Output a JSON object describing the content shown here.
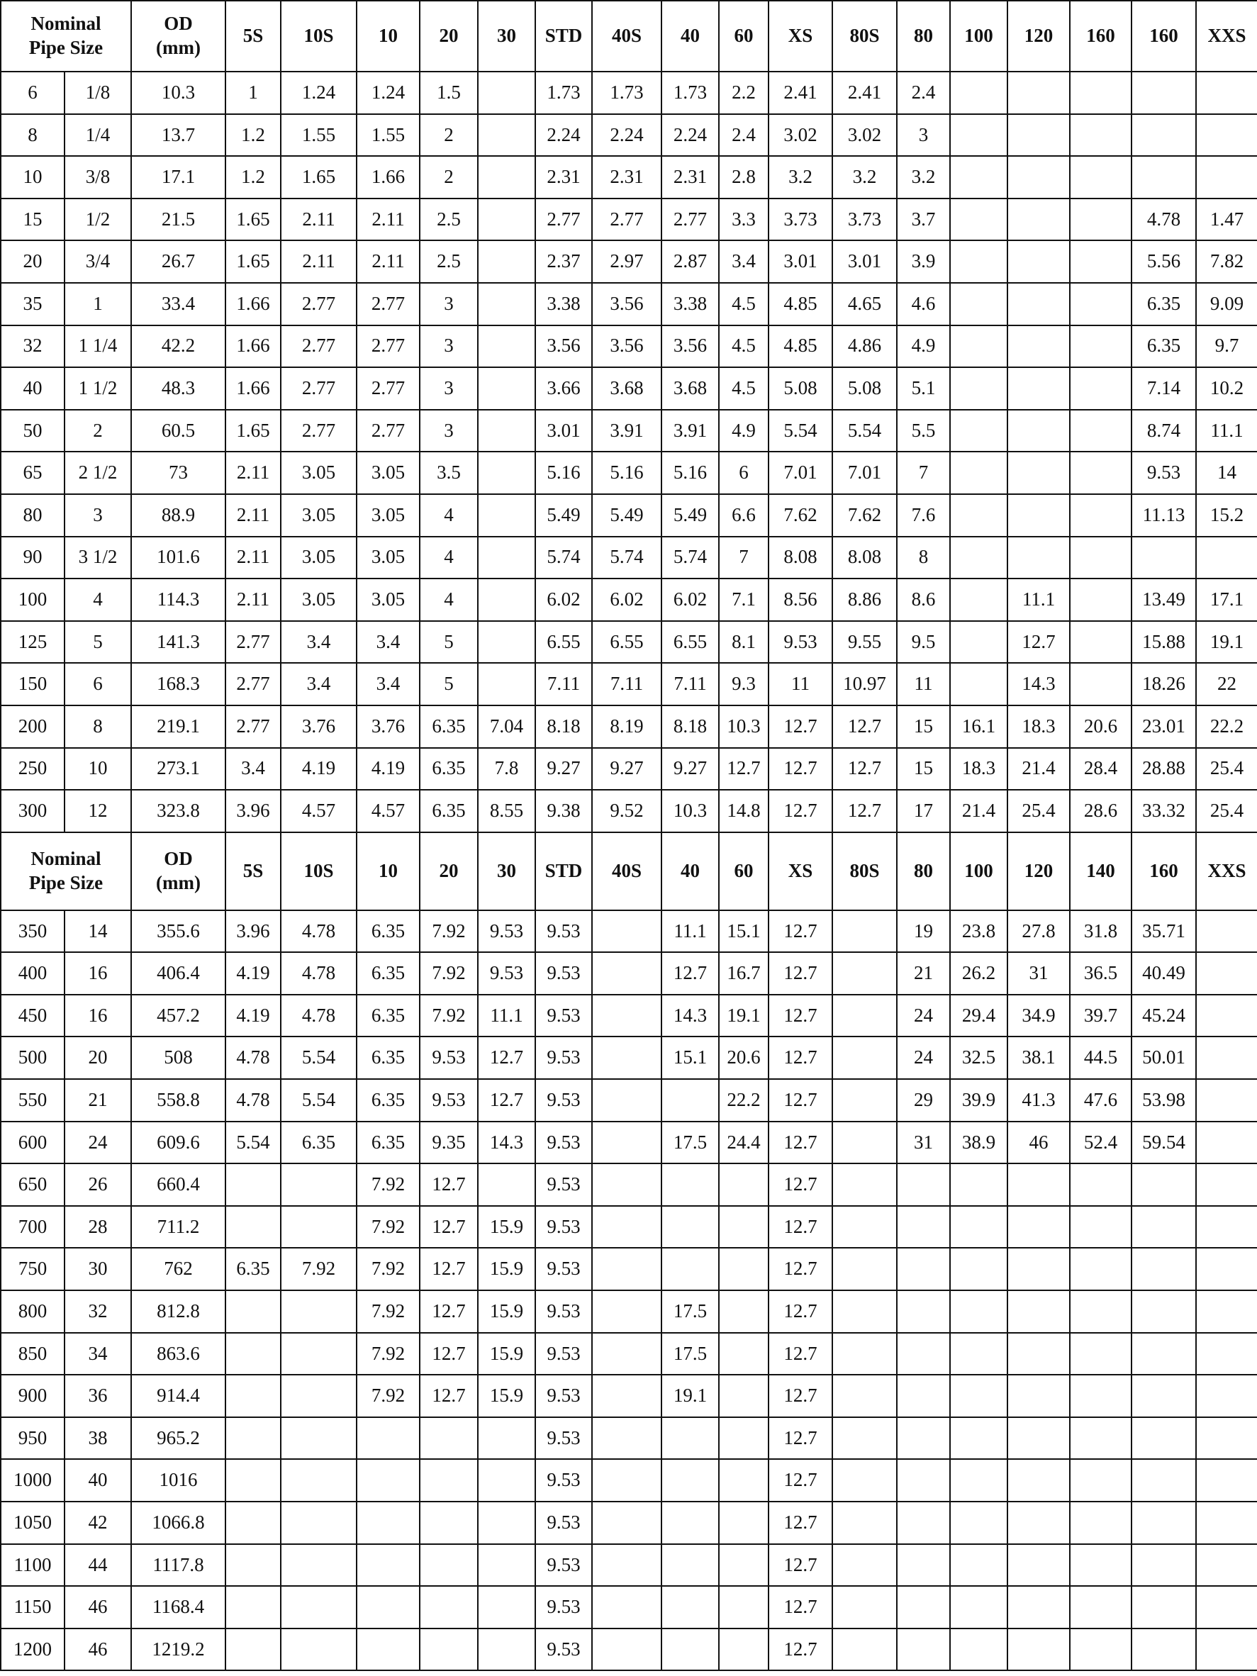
{
  "header": {
    "nominal": "Nominal\nPipe Size",
    "od": "OD\n(mm)",
    "schedules_top": [
      "5S",
      "10S",
      "10",
      "20",
      "30",
      "STD",
      "40S",
      "40",
      "60",
      "XS",
      "80S",
      "80",
      "100",
      "120",
      "160",
      "160",
      "XXS"
    ],
    "schedules_bottom": [
      "5S",
      "10S",
      "10",
      "20",
      "30",
      "STD",
      "40S",
      "40",
      "60",
      "XS",
      "80S",
      "80",
      "100",
      "120",
      "140",
      "160",
      "XXS"
    ]
  },
  "table1": {
    "rows": [
      [
        "6",
        "1/8",
        "10.3",
        "1",
        "1.24",
        "1.24",
        "1.5",
        "",
        "1.73",
        "1.73",
        "1.73",
        "2.2",
        "2.41",
        "2.41",
        "2.4",
        "",
        "",
        "",
        "",
        ""
      ],
      [
        "8",
        "1/4",
        "13.7",
        "1.2",
        "1.55",
        "1.55",
        "2",
        "",
        "2.24",
        "2.24",
        "2.24",
        "2.4",
        "3.02",
        "3.02",
        "3",
        "",
        "",
        "",
        "",
        ""
      ],
      [
        "10",
        "3/8",
        "17.1",
        "1.2",
        "1.65",
        "1.66",
        "2",
        "",
        "2.31",
        "2.31",
        "2.31",
        "2.8",
        "3.2",
        "3.2",
        "3.2",
        "",
        "",
        "",
        "",
        ""
      ],
      [
        "15",
        "1/2",
        "21.5",
        "1.65",
        "2.11",
        "2.11",
        "2.5",
        "",
        "2.77",
        "2.77",
        "2.77",
        "3.3",
        "3.73",
        "3.73",
        "3.7",
        "",
        "",
        "",
        "4.78",
        "1.47"
      ],
      [
        "20",
        "3/4",
        "26.7",
        "1.65",
        "2.11",
        "2.11",
        "2.5",
        "",
        "2.37",
        "2.97",
        "2.87",
        "3.4",
        "3.01",
        "3.01",
        "3.9",
        "",
        "",
        "",
        "5.56",
        "7.82"
      ],
      [
        "35",
        "1",
        "33.4",
        "1.66",
        "2.77",
        "2.77",
        "3",
        "",
        "3.38",
        "3.56",
        "3.38",
        "4.5",
        "4.85",
        "4.65",
        "4.6",
        "",
        "",
        "",
        "6.35",
        "9.09"
      ],
      [
        "32",
        "1 1/4",
        "42.2",
        "1.66",
        "2.77",
        "2.77",
        "3",
        "",
        "3.56",
        "3.56",
        "3.56",
        "4.5",
        "4.85",
        "4.86",
        "4.9",
        "",
        "",
        "",
        "6.35",
        "9.7"
      ],
      [
        "40",
        "1 1/2",
        "48.3",
        "1.66",
        "2.77",
        "2.77",
        "3",
        "",
        "3.66",
        "3.68",
        "3.68",
        "4.5",
        "5.08",
        "5.08",
        "5.1",
        "",
        "",
        "",
        "7.14",
        "10.2"
      ],
      [
        "50",
        "2",
        "60.5",
        "1.65",
        "2.77",
        "2.77",
        "3",
        "",
        "3.01",
        "3.91",
        "3.91",
        "4.9",
        "5.54",
        "5.54",
        "5.5",
        "",
        "",
        "",
        "8.74",
        "11.1"
      ],
      [
        "65",
        "2 1/2",
        "73",
        "2.11",
        "3.05",
        "3.05",
        "3.5",
        "",
        "5.16",
        "5.16",
        "5.16",
        "6",
        "7.01",
        "7.01",
        "7",
        "",
        "",
        "",
        "9.53",
        "14"
      ],
      [
        "80",
        "3",
        "88.9",
        "2.11",
        "3.05",
        "3.05",
        "4",
        "",
        "5.49",
        "5.49",
        "5.49",
        "6.6",
        "7.62",
        "7.62",
        "7.6",
        "",
        "",
        "",
        "11.13",
        "15.2"
      ],
      [
        "90",
        "3 1/2",
        "101.6",
        "2.11",
        "3.05",
        "3.05",
        "4",
        "",
        "5.74",
        "5.74",
        "5.74",
        "7",
        "8.08",
        "8.08",
        "8",
        "",
        "",
        "",
        "",
        ""
      ],
      [
        "100",
        "4",
        "114.3",
        "2.11",
        "3.05",
        "3.05",
        "4",
        "",
        "6.02",
        "6.02",
        "6.02",
        "7.1",
        "8.56",
        "8.86",
        "8.6",
        "",
        "11.1",
        "",
        "13.49",
        "17.1"
      ],
      [
        "125",
        "5",
        "141.3",
        "2.77",
        "3.4",
        "3.4",
        "5",
        "",
        "6.55",
        "6.55",
        "6.55",
        "8.1",
        "9.53",
        "9.55",
        "9.5",
        "",
        "12.7",
        "",
        "15.88",
        "19.1"
      ],
      [
        "150",
        "6",
        "168.3",
        "2.77",
        "3.4",
        "3.4",
        "5",
        "",
        "7.11",
        "7.11",
        "7.11",
        "9.3",
        "11",
        "10.97",
        "11",
        "",
        "14.3",
        "",
        "18.26",
        "22"
      ],
      [
        "200",
        "8",
        "219.1",
        "2.77",
        "3.76",
        "3.76",
        "6.35",
        "7.04",
        "8.18",
        "8.19",
        "8.18",
        "10.3",
        "12.7",
        "12.7",
        "15",
        "16.1",
        "18.3",
        "20.6",
        "23.01",
        "22.2"
      ],
      [
        "250",
        "10",
        "273.1",
        "3.4",
        "4.19",
        "4.19",
        "6.35",
        "7.8",
        "9.27",
        "9.27",
        "9.27",
        "12.7",
        "12.7",
        "12.7",
        "15",
        "18.3",
        "21.4",
        "28.4",
        "28.88",
        "25.4"
      ],
      [
        "300",
        "12",
        "323.8",
        "3.96",
        "4.57",
        "4.57",
        "6.35",
        "8.55",
        "9.38",
        "9.52",
        "10.3",
        "14.8",
        "12.7",
        "12.7",
        "17",
        "21.4",
        "25.4",
        "28.6",
        "33.32",
        "25.4"
      ]
    ]
  },
  "table2": {
    "rows": [
      [
        "350",
        "14",
        "355.6",
        "3.96",
        "4.78",
        "6.35",
        "7.92",
        "9.53",
        "9.53",
        "",
        "11.1",
        "15.1",
        "12.7",
        "",
        "19",
        "23.8",
        "27.8",
        "31.8",
        "35.71",
        ""
      ],
      [
        "400",
        "16",
        "406.4",
        "4.19",
        "4.78",
        "6.35",
        "7.92",
        "9.53",
        "9.53",
        "",
        "12.7",
        "16.7",
        "12.7",
        "",
        "21",
        "26.2",
        "31",
        "36.5",
        "40.49",
        ""
      ],
      [
        "450",
        "16",
        "457.2",
        "4.19",
        "4.78",
        "6.35",
        "7.92",
        "11.1",
        "9.53",
        "",
        "14.3",
        "19.1",
        "12.7",
        "",
        "24",
        "29.4",
        "34.9",
        "39.7",
        "45.24",
        ""
      ],
      [
        "500",
        "20",
        "508",
        "4.78",
        "5.54",
        "6.35",
        "9.53",
        "12.7",
        "9.53",
        "",
        "15.1",
        "20.6",
        "12.7",
        "",
        "24",
        "32.5",
        "38.1",
        "44.5",
        "50.01",
        ""
      ],
      [
        "550",
        "21",
        "558.8",
        "4.78",
        "5.54",
        "6.35",
        "9.53",
        "12.7",
        "9.53",
        "",
        "",
        "22.2",
        "12.7",
        "",
        "29",
        "39.9",
        "41.3",
        "47.6",
        "53.98",
        ""
      ],
      [
        "600",
        "24",
        "609.6",
        "5.54",
        "6.35",
        "6.35",
        "9.35",
        "14.3",
        "9.53",
        "",
        "17.5",
        "24.4",
        "12.7",
        "",
        "31",
        "38.9",
        "46",
        "52.4",
        "59.54",
        ""
      ],
      [
        "650",
        "26",
        "660.4",
        "",
        "",
        "7.92",
        "12.7",
        "",
        "9.53",
        "",
        "",
        "",
        "12.7",
        "",
        "",
        "",
        "",
        "",
        "",
        ""
      ],
      [
        "700",
        "28",
        "711.2",
        "",
        "",
        "7.92",
        "12.7",
        "15.9",
        "9.53",
        "",
        "",
        "",
        "12.7",
        "",
        "",
        "",
        "",
        "",
        "",
        ""
      ],
      [
        "750",
        "30",
        "762",
        "6.35",
        "7.92",
        "7.92",
        "12.7",
        "15.9",
        "9.53",
        "",
        "",
        "",
        "12.7",
        "",
        "",
        "",
        "",
        "",
        "",
        ""
      ],
      [
        "800",
        "32",
        "812.8",
        "",
        "",
        "7.92",
        "12.7",
        "15.9",
        "9.53",
        "",
        "17.5",
        "",
        "12.7",
        "",
        "",
        "",
        "",
        "",
        "",
        ""
      ],
      [
        "850",
        "34",
        "863.6",
        "",
        "",
        "7.92",
        "12.7",
        "15.9",
        "9.53",
        "",
        "17.5",
        "",
        "12.7",
        "",
        "",
        "",
        "",
        "",
        "",
        ""
      ],
      [
        "900",
        "36",
        "914.4",
        "",
        "",
        "7.92",
        "12.7",
        "15.9",
        "9.53",
        "",
        "19.1",
        "",
        "12.7",
        "",
        "",
        "",
        "",
        "",
        "",
        ""
      ],
      [
        "950",
        "38",
        "965.2",
        "",
        "",
        "",
        "",
        "",
        "9.53",
        "",
        "",
        "",
        "12.7",
        "",
        "",
        "",
        "",
        "",
        "",
        ""
      ],
      [
        "1000",
        "40",
        "1016",
        "",
        "",
        "",
        "",
        "",
        "9.53",
        "",
        "",
        "",
        "12.7",
        "",
        "",
        "",
        "",
        "",
        "",
        ""
      ],
      [
        "1050",
        "42",
        "1066.8",
        "",
        "",
        "",
        "",
        "",
        "9.53",
        "",
        "",
        "",
        "12.7",
        "",
        "",
        "",
        "",
        "",
        "",
        ""
      ],
      [
        "1100",
        "44",
        "1117.8",
        "",
        "",
        "",
        "",
        "",
        "9.53",
        "",
        "",
        "",
        "12.7",
        "",
        "",
        "",
        "",
        "",
        "",
        ""
      ],
      [
        "1150",
        "46",
        "1168.4",
        "",
        "",
        "",
        "",
        "",
        "9.53",
        "",
        "",
        "",
        "12.7",
        "",
        "",
        "",
        "",
        "",
        "",
        ""
      ],
      [
        "1200",
        "46",
        "1219.2",
        "",
        "",
        "",
        "",
        "",
        "9.53",
        "",
        "",
        "",
        "12.7",
        "",
        "",
        "",
        "",
        "",
        "",
        ""
      ]
    ]
  }
}
